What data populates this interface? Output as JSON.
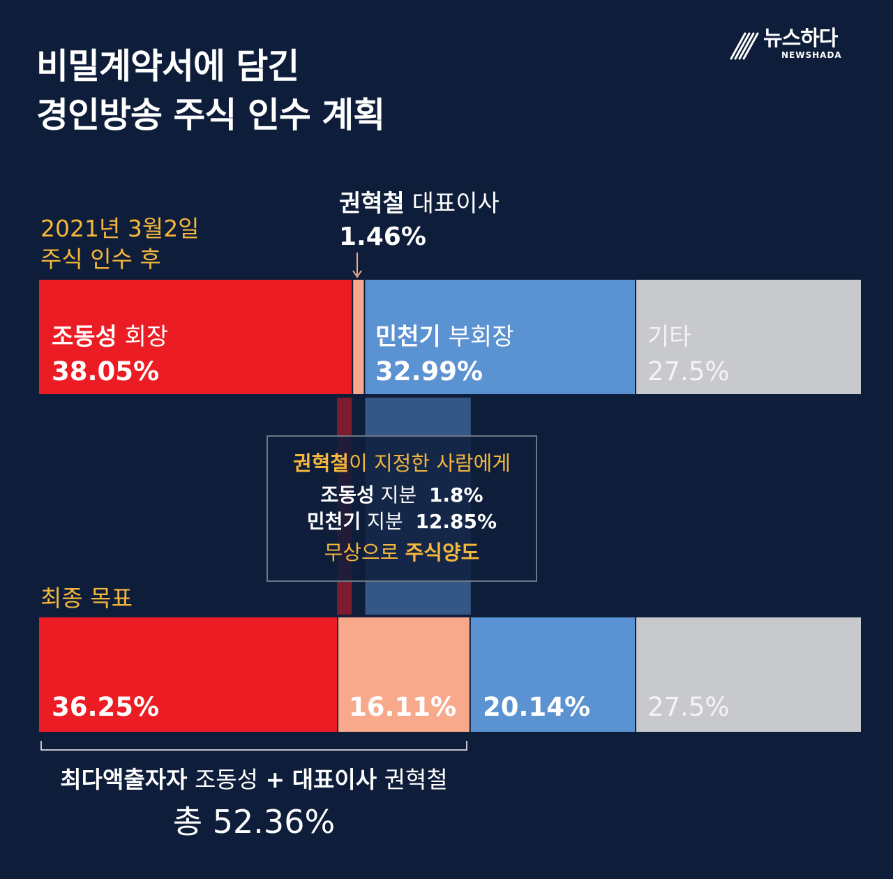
{
  "title": {
    "line1": "비밀계약서에 담긴",
    "line2": "경인방송 주식 인수 계획"
  },
  "logo": {
    "name": "뉴스하다",
    "sub": "NEWSHADA"
  },
  "colors": {
    "background": "#0e1d3a",
    "cho": "#ec1c24",
    "kwon": "#f8a98c",
    "min": "#5b92d2",
    "other": "#c7c9cd",
    "accent": "#f5b73b"
  },
  "callout": {
    "name": "권혁철",
    "role": "대표이사",
    "pct": "1.46%"
  },
  "transfer_box": {
    "line1_name": "권혁철",
    "line1_rest": "이 지정한 사람에게",
    "line2_name": "조동성",
    "line2_label": "지분",
    "line2_pct": "1.8%",
    "line3_name": "민천기",
    "line3_label": "지분",
    "line3_pct": "12.85%",
    "line4_rest": "무상으로",
    "line4_bold": "주식양도"
  },
  "summary": {
    "bold1": "최다액출자자",
    "name1": "조동성",
    "plus": "+",
    "bold2": "대표이사",
    "name2": "권혁철",
    "total": "총 52.36%"
  },
  "chart_data": {
    "type": "stacked-bar-horizontal",
    "title": "비밀계약서에 담긴 경인방송 주식 인수 계획",
    "unit": "%",
    "rows": [
      {
        "label_line1": "2021년 3월2일",
        "label_line2": "주식 인수 후",
        "segments": [
          {
            "key": "cho",
            "name": "조동성",
            "role": "회장",
            "value": 38.05,
            "display": "38.05%"
          },
          {
            "key": "kwon",
            "name": "권혁철",
            "role": "대표이사",
            "value": 1.46,
            "display": "1.46%"
          },
          {
            "key": "min",
            "name": "민천기",
            "role": "부회장",
            "value": 32.99,
            "display": "32.99%"
          },
          {
            "key": "other",
            "name": "기타",
            "role": "",
            "value": 27.5,
            "display": "27.5%"
          }
        ]
      },
      {
        "label_line1": "최종 목표",
        "label_line2": "",
        "segments": [
          {
            "key": "cho",
            "value": 36.25,
            "display": "36.25%"
          },
          {
            "key": "kwon",
            "value": 16.11,
            "display": "16.11%"
          },
          {
            "key": "min",
            "value": 20.14,
            "display": "20.14%"
          },
          {
            "key": "other",
            "value": 27.5,
            "display": "27.5%"
          }
        ]
      }
    ],
    "transfers": [
      {
        "from": "cho",
        "to": "kwon",
        "value": 1.8
      },
      {
        "from": "min",
        "to": "kwon",
        "value": 12.85
      }
    ]
  }
}
